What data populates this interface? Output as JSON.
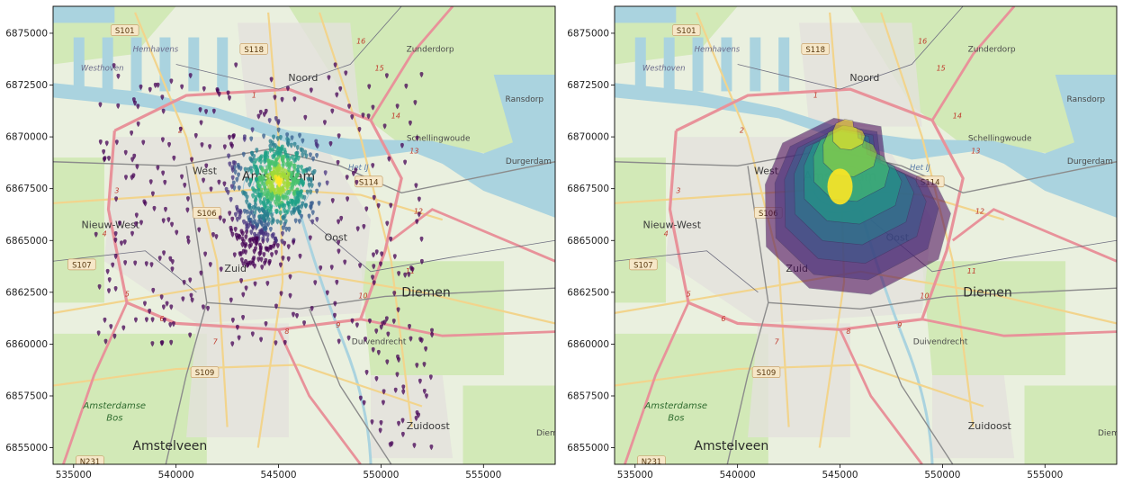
{
  "figure": {
    "panels": [
      {
        "id": "points",
        "kind": "scatter-density"
      },
      {
        "id": "kde",
        "kind": "kde-contour"
      }
    ]
  },
  "axes": {
    "x_ticks": [
      "535000",
      "540000",
      "545000",
      "550000",
      "555000"
    ],
    "y_ticks": [
      "6855000",
      "6857500",
      "6860000",
      "6862500",
      "6865000",
      "6867500",
      "6870000",
      "6872500",
      "6875000"
    ],
    "xlim": [
      534000,
      558500
    ],
    "ylim": [
      6854200,
      6876300
    ]
  },
  "basemap": {
    "places": [
      {
        "name": "Amsterdam",
        "cls": "place-big",
        "x": 545000,
        "y": 6867900
      },
      {
        "name": "Noord",
        "cls": "place-mid",
        "x": 546200,
        "y": 6872700
      },
      {
        "name": "West",
        "cls": "place-mid",
        "x": 541400,
        "y": 6868200
      },
      {
        "name": "Nieuw-West",
        "cls": "place-mid",
        "x": 536800,
        "y": 6865600
      },
      {
        "name": "Zuid",
        "cls": "place-mid",
        "x": 542900,
        "y": 6863500
      },
      {
        "name": "Oost",
        "cls": "place-mid",
        "x": 547800,
        "y": 6865000
      },
      {
        "name": "Diemen",
        "cls": "place-big",
        "x": 552200,
        "y": 6862300
      },
      {
        "name": "Duivendrecht",
        "cls": "place-sm",
        "x": 549900,
        "y": 6860000
      },
      {
        "name": "Zuidoost",
        "cls": "place-mid",
        "x": 552300,
        "y": 6855900
      },
      {
        "name": "Amstelveen",
        "cls": "place-big",
        "x": 539700,
        "y": 6854900
      },
      {
        "name": "Zunderdorp",
        "cls": "place-sm",
        "x": 552400,
        "y": 6874100
      },
      {
        "name": "Ransdorp",
        "cls": "place-sm",
        "x": 557000,
        "y": 6871700
      },
      {
        "name": "Schellingwoude",
        "cls": "place-sm",
        "x": 552800,
        "y": 6869800
      },
      {
        "name": "Durgerdam",
        "cls": "place-sm",
        "x": 557200,
        "y": 6868700
      },
      {
        "name": "Diem",
        "cls": "place-sm",
        "x": 558100,
        "y": 6855600
      },
      {
        "name": "Hemhavens",
        "cls": "place-it",
        "x": 539000,
        "y": 6874100
      },
      {
        "name": "Westhoven",
        "cls": "place-it",
        "x": 536400,
        "y": 6873200
      },
      {
        "name": "Het IJ",
        "cls": "place-water",
        "x": 548900,
        "y": 6868400
      }
    ],
    "forest": [
      "Amsterdamse",
      "Bos"
    ],
    "shields": [
      {
        "label": "S101",
        "x": 537500,
        "y": 6875100
      },
      {
        "label": "S118",
        "x": 543800,
        "y": 6874200
      },
      {
        "label": "S114",
        "x": 549400,
        "y": 6867800
      },
      {
        "label": "S106",
        "x": 541500,
        "y": 6866300
      },
      {
        "label": "S107",
        "x": 535400,
        "y": 6863800
      },
      {
        "label": "S109",
        "x": 541400,
        "y": 6858600
      },
      {
        "label": "N231",
        "x": 535800,
        "y": 6854300
      }
    ],
    "ring_numbers": [
      "16",
      "15",
      "14",
      "13",
      "12",
      "11",
      "10",
      "9",
      "8",
      "7",
      "6",
      "5",
      "4",
      "3",
      "2",
      "1"
    ]
  },
  "chart_data": [
    {
      "type": "scatter",
      "panel": "left",
      "description_free": true,
      "x_axis_ticks": [
        535000,
        540000,
        545000,
        550000,
        555000
      ],
      "y_axis_ticks": [
        6855000,
        6857500,
        6860000,
        6862500,
        6865000,
        6867500,
        6870000,
        6872500,
        6875000
      ],
      "xlim": [
        534000,
        558500
      ],
      "ylim": [
        6854200,
        6876300
      ],
      "density_center": [
        545000,
        6867900
      ],
      "colormap": "viridis",
      "grid": false
    },
    {
      "type": "heatmap",
      "panel": "right",
      "x_axis_ticks": [
        535000,
        540000,
        545000,
        550000,
        555000
      ],
      "y_axis_ticks": [
        6855000,
        6857500,
        6860000,
        6862500,
        6865000,
        6867500,
        6870000,
        6872500,
        6875000
      ],
      "xlim": [
        534000,
        558500
      ],
      "ylim": [
        6854200,
        6876300
      ],
      "peak": [
        545000,
        6867900
      ],
      "colormap": "viridis",
      "levels": 8,
      "grid": false
    }
  ],
  "colors": {
    "land": "#eaf0df",
    "green": "#cfe8b3",
    "water": "#aad3df",
    "motorway": "#e8929a",
    "primary": "#f2d48c",
    "rail": "#8c8c8c",
    "viridis": [
      "#440154",
      "#46327e",
      "#365c8d",
      "#277f8e",
      "#1fa187",
      "#4ac16d",
      "#a0da39",
      "#fde725"
    ]
  }
}
